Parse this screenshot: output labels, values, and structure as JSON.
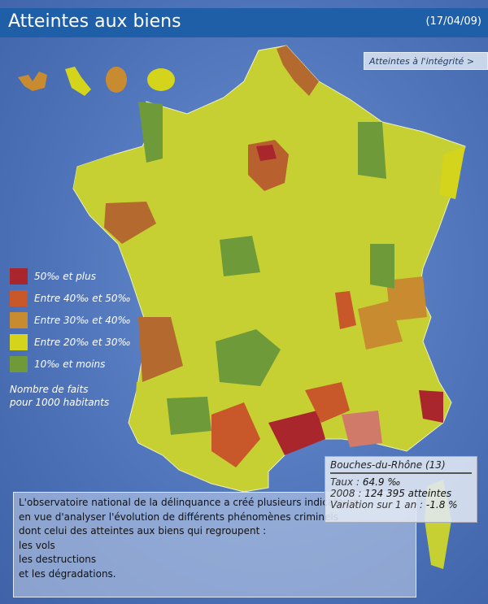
{
  "header": {
    "title": "Atteintes aux biens",
    "date": "(17/04/09)"
  },
  "nav": {
    "other_view_label": "Atteintes à l'intégrité >"
  },
  "legend": {
    "items": [
      {
        "label": "50‰ et plus",
        "color": "#a8262c"
      },
      {
        "label": "Entre 40‰ et 50‰",
        "color": "#c8572a"
      },
      {
        "label": "Entre 30‰ et 40‰",
        "color": "#c98b2f"
      },
      {
        "label": "Entre 20‰ et 30‰",
        "color": "#d4d41c"
      },
      {
        "label": "10‰ et moins",
        "color": "#6e9a3a"
      }
    ],
    "note_line1": "Nombre de faits",
    "note_line2": "pour 1000 habitants"
  },
  "tooltip": {
    "department": "Bouches-du-Rhône (13)",
    "rate_label": "Taux :",
    "rate_value": "64.9 ‰",
    "year_label": "2008 :",
    "year_value": "124 395 atteintes",
    "variation_label": "Variation sur 1 an :",
    "variation_value": "-1.8 %"
  },
  "description": {
    "lines": [
      "L'observatoire national de la délinquance a créé plusieurs indicateurs",
      "en vue d'analyser l'évolution de différents phénomènes criminels",
      "dont celui des atteintes aux biens qui regroupent :",
      "les vols",
      "les destructions",
      "et les dégradations."
    ]
  }
}
